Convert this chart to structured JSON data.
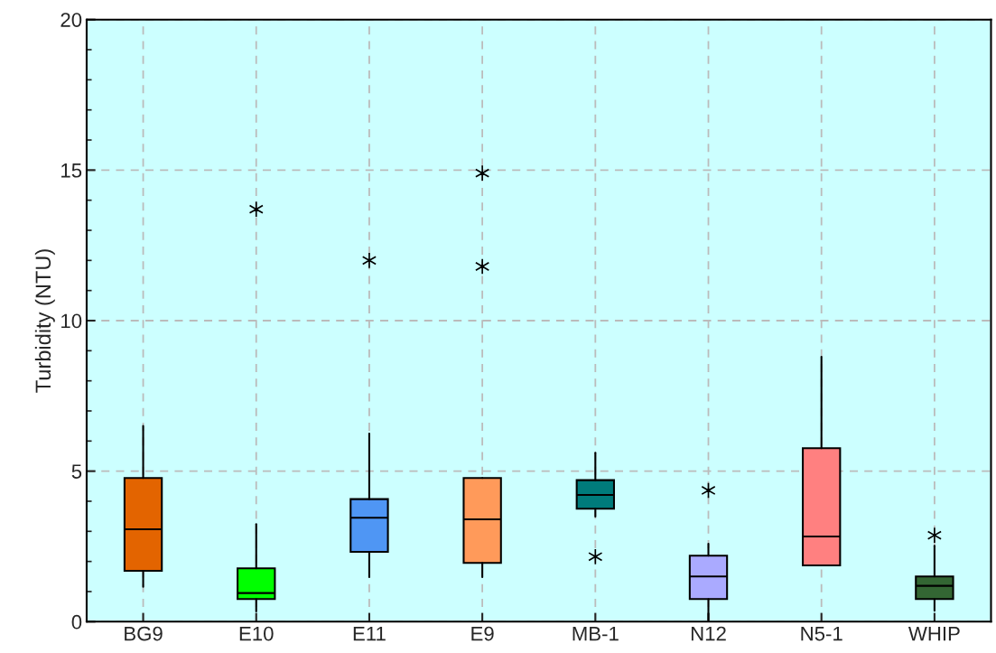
{
  "chart_data": {
    "type": "box",
    "ylabel": "Turbidity (NTU)",
    "categories": [
      "BG9",
      "E10",
      "E11",
      "E9",
      "MB-1",
      "N12",
      "N5-1",
      "WHIP"
    ],
    "colors": [
      "#e36400",
      "#00ff00",
      "#4f96f4",
      "#ff9a5a",
      "#007b7b",
      "#aaaaff",
      "#ff8080",
      "#336633"
    ],
    "boxes": [
      {
        "low": 1.16,
        "q1": 1.69,
        "median": 3.07,
        "q3": 4.77,
        "high": 6.5
      },
      {
        "low": 0.34,
        "q1": 0.75,
        "median": 0.95,
        "q3": 1.77,
        "high": 3.24,
        "outliers": [
          13.7
        ]
      },
      {
        "low": 1.48,
        "q1": 2.32,
        "median": 3.45,
        "q3": 4.07,
        "high": 6.25,
        "outliers": [
          12.0
        ]
      },
      {
        "low": 1.48,
        "q1": 1.95,
        "median": 3.4,
        "q3": 4.77,
        "high": 4.77,
        "outliers": [
          14.9,
          11.8
        ]
      },
      {
        "low": 3.49,
        "q1": 3.75,
        "median": 4.21,
        "q3": 4.7,
        "high": 5.61,
        "outliers": [
          2.16
        ]
      },
      {
        "low": 0.04,
        "q1": 0.75,
        "median": 1.5,
        "q3": 2.19,
        "high": 2.59,
        "outliers": [
          4.36
        ]
      },
      {
        "low": 1.87,
        "q1": 1.87,
        "median": 2.83,
        "q3": 5.76,
        "high": 8.8
      },
      {
        "low": 0.36,
        "q1": 0.75,
        "median": 1.19,
        "q3": 1.5,
        "high": 2.52,
        "outliers": [
          2.87
        ]
      }
    ],
    "ylim": [
      0,
      20
    ],
    "yticks": [
      0,
      5,
      10,
      15,
      20
    ],
    "grid": true,
    "marker": "star"
  }
}
